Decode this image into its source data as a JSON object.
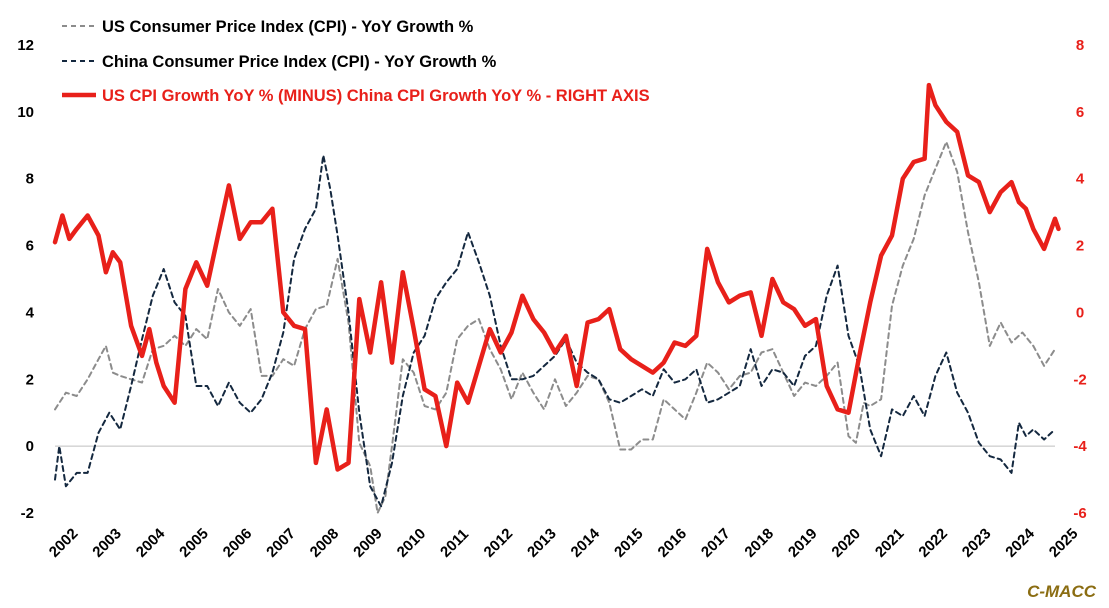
{
  "chart_data": {
    "type": "line",
    "title": "",
    "watermark": "C-MACC",
    "x_tick_labels": [
      "2002",
      "2003",
      "2004",
      "2005",
      "2006",
      "2007",
      "2008",
      "2009",
      "2010",
      "2011",
      "2012",
      "2013",
      "2014",
      "2015",
      "2016",
      "2017",
      "2018",
      "2019",
      "2020",
      "2021",
      "2022",
      "2023",
      "2024",
      "2025"
    ],
    "x_range": [
      2002,
      2025
    ],
    "y_left": {
      "ticks": [
        -2,
        0,
        2,
        4,
        6,
        8,
        10,
        12
      ],
      "range": [
        -2,
        12
      ]
    },
    "y_right": {
      "ticks": [
        -6,
        -4,
        -2,
        0,
        2,
        4,
        6,
        8
      ],
      "range": [
        -6,
        8
      ],
      "color": "#e8201a"
    },
    "legend_position": "top-left",
    "grid": false,
    "series": [
      {
        "name": "US Consumer Price Index (CPI) - YoY Growth %",
        "axis": "left",
        "color": "#8c8c8c",
        "dash": "dashed",
        "points": [
          [
            2002.0,
            1.1
          ],
          [
            2002.25,
            1.6
          ],
          [
            2002.5,
            1.5
          ],
          [
            2002.75,
            2.0
          ],
          [
            2003.0,
            2.6
          ],
          [
            2003.17,
            3.0
          ],
          [
            2003.33,
            2.2
          ],
          [
            2003.5,
            2.1
          ],
          [
            2003.75,
            2.0
          ],
          [
            2004.0,
            1.9
          ],
          [
            2004.25,
            2.9
          ],
          [
            2004.5,
            3.0
          ],
          [
            2004.75,
            3.3
          ],
          [
            2005.0,
            3.0
          ],
          [
            2005.25,
            3.5
          ],
          [
            2005.5,
            3.2
          ],
          [
            2005.75,
            4.7
          ],
          [
            2006.0,
            4.0
          ],
          [
            2006.25,
            3.6
          ],
          [
            2006.5,
            4.1
          ],
          [
            2006.75,
            2.1
          ],
          [
            2007.0,
            2.1
          ],
          [
            2007.25,
            2.6
          ],
          [
            2007.5,
            2.4
          ],
          [
            2007.75,
            3.5
          ],
          [
            2008.0,
            4.1
          ],
          [
            2008.25,
            4.2
          ],
          [
            2008.5,
            5.6
          ],
          [
            2008.75,
            3.7
          ],
          [
            2009.0,
            0.1
          ],
          [
            2009.25,
            -0.6
          ],
          [
            2009.42,
            -2.0
          ],
          [
            2009.6,
            -1.5
          ],
          [
            2009.75,
            0.0
          ],
          [
            2010.0,
            2.6
          ],
          [
            2010.25,
            2.2
          ],
          [
            2010.5,
            1.2
          ],
          [
            2010.75,
            1.1
          ],
          [
            2011.0,
            1.6
          ],
          [
            2011.25,
            3.2
          ],
          [
            2011.5,
            3.6
          ],
          [
            2011.75,
            3.8
          ],
          [
            2012.0,
            2.9
          ],
          [
            2012.25,
            2.3
          ],
          [
            2012.5,
            1.4
          ],
          [
            2012.75,
            2.2
          ],
          [
            2013.0,
            1.6
          ],
          [
            2013.25,
            1.1
          ],
          [
            2013.5,
            2.0
          ],
          [
            2013.75,
            1.2
          ],
          [
            2014.0,
            1.6
          ],
          [
            2014.25,
            2.1
          ],
          [
            2014.5,
            2.0
          ],
          [
            2014.75,
            1.3
          ],
          [
            2015.0,
            -0.1
          ],
          [
            2015.25,
            -0.1
          ],
          [
            2015.5,
            0.2
          ],
          [
            2015.75,
            0.2
          ],
          [
            2016.0,
            1.4
          ],
          [
            2016.25,
            1.1
          ],
          [
            2016.5,
            0.8
          ],
          [
            2016.75,
            1.6
          ],
          [
            2017.0,
            2.5
          ],
          [
            2017.25,
            2.2
          ],
          [
            2017.5,
            1.7
          ],
          [
            2017.75,
            2.1
          ],
          [
            2018.0,
            2.2
          ],
          [
            2018.25,
            2.8
          ],
          [
            2018.5,
            2.9
          ],
          [
            2018.75,
            2.2
          ],
          [
            2019.0,
            1.5
          ],
          [
            2019.25,
            1.9
          ],
          [
            2019.5,
            1.8
          ],
          [
            2019.75,
            2.1
          ],
          [
            2020.0,
            2.5
          ],
          [
            2020.25,
            0.3
          ],
          [
            2020.42,
            0.1
          ],
          [
            2020.6,
            1.3
          ],
          [
            2020.75,
            1.2
          ],
          [
            2021.0,
            1.4
          ],
          [
            2021.25,
            4.2
          ],
          [
            2021.5,
            5.4
          ],
          [
            2021.75,
            6.2
          ],
          [
            2022.0,
            7.5
          ],
          [
            2022.25,
            8.3
          ],
          [
            2022.5,
            9.1
          ],
          [
            2022.75,
            8.2
          ],
          [
            2023.0,
            6.4
          ],
          [
            2023.25,
            4.9
          ],
          [
            2023.5,
            3.0
          ],
          [
            2023.75,
            3.7
          ],
          [
            2024.0,
            3.1
          ],
          [
            2024.25,
            3.4
          ],
          [
            2024.5,
            3.0
          ],
          [
            2024.75,
            2.4
          ],
          [
            2025.0,
            2.9
          ]
        ]
      },
      {
        "name": "China Consumer Price Index (CPI) - YoY Growth %",
        "axis": "left",
        "color": "#14283f",
        "dash": "dashed",
        "points": [
          [
            2002.0,
            -1.0
          ],
          [
            2002.1,
            0.0
          ],
          [
            2002.25,
            -1.2
          ],
          [
            2002.5,
            -0.8
          ],
          [
            2002.75,
            -0.8
          ],
          [
            2003.0,
            0.4
          ],
          [
            2003.25,
            1.0
          ],
          [
            2003.5,
            0.5
          ],
          [
            2003.75,
            1.8
          ],
          [
            2004.0,
            3.2
          ],
          [
            2004.25,
            4.5
          ],
          [
            2004.5,
            5.3
          ],
          [
            2004.75,
            4.3
          ],
          [
            2005.0,
            3.9
          ],
          [
            2005.25,
            1.8
          ],
          [
            2005.5,
            1.8
          ],
          [
            2005.75,
            1.2
          ],
          [
            2006.0,
            1.9
          ],
          [
            2006.25,
            1.3
          ],
          [
            2006.5,
            1.0
          ],
          [
            2006.75,
            1.4
          ],
          [
            2007.0,
            2.2
          ],
          [
            2007.25,
            3.4
          ],
          [
            2007.5,
            5.6
          ],
          [
            2007.75,
            6.5
          ],
          [
            2008.0,
            7.1
          ],
          [
            2008.17,
            8.7
          ],
          [
            2008.33,
            7.7
          ],
          [
            2008.5,
            6.3
          ],
          [
            2008.75,
            4.0
          ],
          [
            2009.0,
            1.0
          ],
          [
            2009.25,
            -1.2
          ],
          [
            2009.5,
            -1.8
          ],
          [
            2009.75,
            -0.5
          ],
          [
            2010.0,
            1.5
          ],
          [
            2010.25,
            2.8
          ],
          [
            2010.5,
            3.3
          ],
          [
            2010.75,
            4.4
          ],
          [
            2011.0,
            4.9
          ],
          [
            2011.25,
            5.3
          ],
          [
            2011.5,
            6.4
          ],
          [
            2011.75,
            5.5
          ],
          [
            2012.0,
            4.5
          ],
          [
            2012.25,
            3.0
          ],
          [
            2012.5,
            2.0
          ],
          [
            2012.75,
            2.0
          ],
          [
            2013.0,
            2.1
          ],
          [
            2013.25,
            2.4
          ],
          [
            2013.5,
            2.7
          ],
          [
            2013.75,
            3.2
          ],
          [
            2014.0,
            2.5
          ],
          [
            2014.25,
            2.2
          ],
          [
            2014.5,
            2.0
          ],
          [
            2014.75,
            1.4
          ],
          [
            2015.0,
            1.3
          ],
          [
            2015.25,
            1.5
          ],
          [
            2015.5,
            1.7
          ],
          [
            2015.75,
            1.5
          ],
          [
            2016.0,
            2.3
          ],
          [
            2016.25,
            1.9
          ],
          [
            2016.5,
            2.0
          ],
          [
            2016.75,
            2.3
          ],
          [
            2017.0,
            1.3
          ],
          [
            2017.25,
            1.4
          ],
          [
            2017.5,
            1.6
          ],
          [
            2017.75,
            1.8
          ],
          [
            2018.0,
            2.9
          ],
          [
            2018.25,
            1.8
          ],
          [
            2018.5,
            2.3
          ],
          [
            2018.75,
            2.2
          ],
          [
            2019.0,
            1.8
          ],
          [
            2019.25,
            2.7
          ],
          [
            2019.5,
            3.0
          ],
          [
            2019.75,
            4.5
          ],
          [
            2020.0,
            5.4
          ],
          [
            2020.25,
            3.3
          ],
          [
            2020.5,
            2.4
          ],
          [
            2020.75,
            0.5
          ],
          [
            2021.0,
            -0.3
          ],
          [
            2021.25,
            1.1
          ],
          [
            2021.5,
            0.9
          ],
          [
            2021.75,
            1.5
          ],
          [
            2022.0,
            0.9
          ],
          [
            2022.25,
            2.1
          ],
          [
            2022.5,
            2.8
          ],
          [
            2022.75,
            1.6
          ],
          [
            2023.0,
            1.0
          ],
          [
            2023.25,
            0.1
          ],
          [
            2023.5,
            -0.3
          ],
          [
            2023.75,
            -0.4
          ],
          [
            2024.0,
            -0.8
          ],
          [
            2024.17,
            0.7
          ],
          [
            2024.33,
            0.3
          ],
          [
            2024.5,
            0.5
          ],
          [
            2024.75,
            0.2
          ],
          [
            2025.0,
            0.5
          ]
        ]
      },
      {
        "name": "US CPI Growth YoY % (MINUS) China CPI Growth YoY % - RIGHT AXIS",
        "axis": "right",
        "color": "#e8201a",
        "dash": "solid",
        "points": [
          [
            2002.0,
            2.1
          ],
          [
            2002.17,
            2.9
          ],
          [
            2002.33,
            2.2
          ],
          [
            2002.5,
            2.5
          ],
          [
            2002.75,
            2.9
          ],
          [
            2003.0,
            2.3
          ],
          [
            2003.17,
            1.2
          ],
          [
            2003.33,
            1.8
          ],
          [
            2003.5,
            1.5
          ],
          [
            2003.75,
            -0.4
          ],
          [
            2004.0,
            -1.3
          ],
          [
            2004.17,
            -0.5
          ],
          [
            2004.33,
            -1.5
          ],
          [
            2004.5,
            -2.2
          ],
          [
            2004.75,
            -2.7
          ],
          [
            2005.0,
            0.7
          ],
          [
            2005.25,
            1.5
          ],
          [
            2005.5,
            0.8
          ],
          [
            2005.75,
            2.3
          ],
          [
            2006.0,
            3.8
          ],
          [
            2006.25,
            2.2
          ],
          [
            2006.5,
            2.7
          ],
          [
            2006.75,
            2.7
          ],
          [
            2007.0,
            3.1
          ],
          [
            2007.25,
            0.0
          ],
          [
            2007.5,
            -0.4
          ],
          [
            2007.75,
            -0.5
          ],
          [
            2008.0,
            -4.5
          ],
          [
            2008.25,
            -2.9
          ],
          [
            2008.5,
            -4.7
          ],
          [
            2008.75,
            -4.5
          ],
          [
            2009.0,
            0.4
          ],
          [
            2009.25,
            -1.2
          ],
          [
            2009.5,
            0.9
          ],
          [
            2009.75,
            -1.5
          ],
          [
            2010.0,
            1.2
          ],
          [
            2010.25,
            -0.5
          ],
          [
            2010.5,
            -2.3
          ],
          [
            2010.75,
            -2.5
          ],
          [
            2011.0,
            -4.0
          ],
          [
            2011.25,
            -2.1
          ],
          [
            2011.5,
            -2.7
          ],
          [
            2011.75,
            -1.6
          ],
          [
            2012.0,
            -0.5
          ],
          [
            2012.25,
            -1.2
          ],
          [
            2012.5,
            -0.6
          ],
          [
            2012.75,
            0.5
          ],
          [
            2013.0,
            -0.2
          ],
          [
            2013.25,
            -0.6
          ],
          [
            2013.5,
            -1.2
          ],
          [
            2013.75,
            -0.7
          ],
          [
            2014.0,
            -2.2
          ],
          [
            2014.25,
            -0.3
          ],
          [
            2014.5,
            -0.2
          ],
          [
            2014.75,
            0.1
          ],
          [
            2015.0,
            -1.1
          ],
          [
            2015.25,
            -1.4
          ],
          [
            2015.5,
            -1.6
          ],
          [
            2015.75,
            -1.8
          ],
          [
            2016.0,
            -1.5
          ],
          [
            2016.25,
            -0.9
          ],
          [
            2016.5,
            -1.0
          ],
          [
            2016.75,
            -0.7
          ],
          [
            2017.0,
            1.9
          ],
          [
            2017.25,
            0.9
          ],
          [
            2017.5,
            0.3
          ],
          [
            2017.75,
            0.5
          ],
          [
            2018.0,
            0.6
          ],
          [
            2018.25,
            -0.7
          ],
          [
            2018.5,
            1.0
          ],
          [
            2018.75,
            0.3
          ],
          [
            2019.0,
            0.1
          ],
          [
            2019.25,
            -0.4
          ],
          [
            2019.5,
            -0.2
          ],
          [
            2019.75,
            -2.2
          ],
          [
            2020.0,
            -2.9
          ],
          [
            2020.25,
            -3.0
          ],
          [
            2020.5,
            -1.3
          ],
          [
            2020.75,
            0.3
          ],
          [
            2021.0,
            1.7
          ],
          [
            2021.25,
            2.3
          ],
          [
            2021.5,
            4.0
          ],
          [
            2021.75,
            4.5
          ],
          [
            2022.0,
            4.6
          ],
          [
            2022.1,
            6.8
          ],
          [
            2022.25,
            6.2
          ],
          [
            2022.5,
            5.7
          ],
          [
            2022.75,
            5.4
          ],
          [
            2023.0,
            4.1
          ],
          [
            2023.25,
            3.9
          ],
          [
            2023.5,
            3.0
          ],
          [
            2023.75,
            3.6
          ],
          [
            2024.0,
            3.9
          ],
          [
            2024.17,
            3.3
          ],
          [
            2024.33,
            3.1
          ],
          [
            2024.5,
            2.5
          ],
          [
            2024.75,
            1.9
          ],
          [
            2025.0,
            2.8
          ],
          [
            2025.08,
            2.5
          ]
        ]
      }
    ]
  }
}
